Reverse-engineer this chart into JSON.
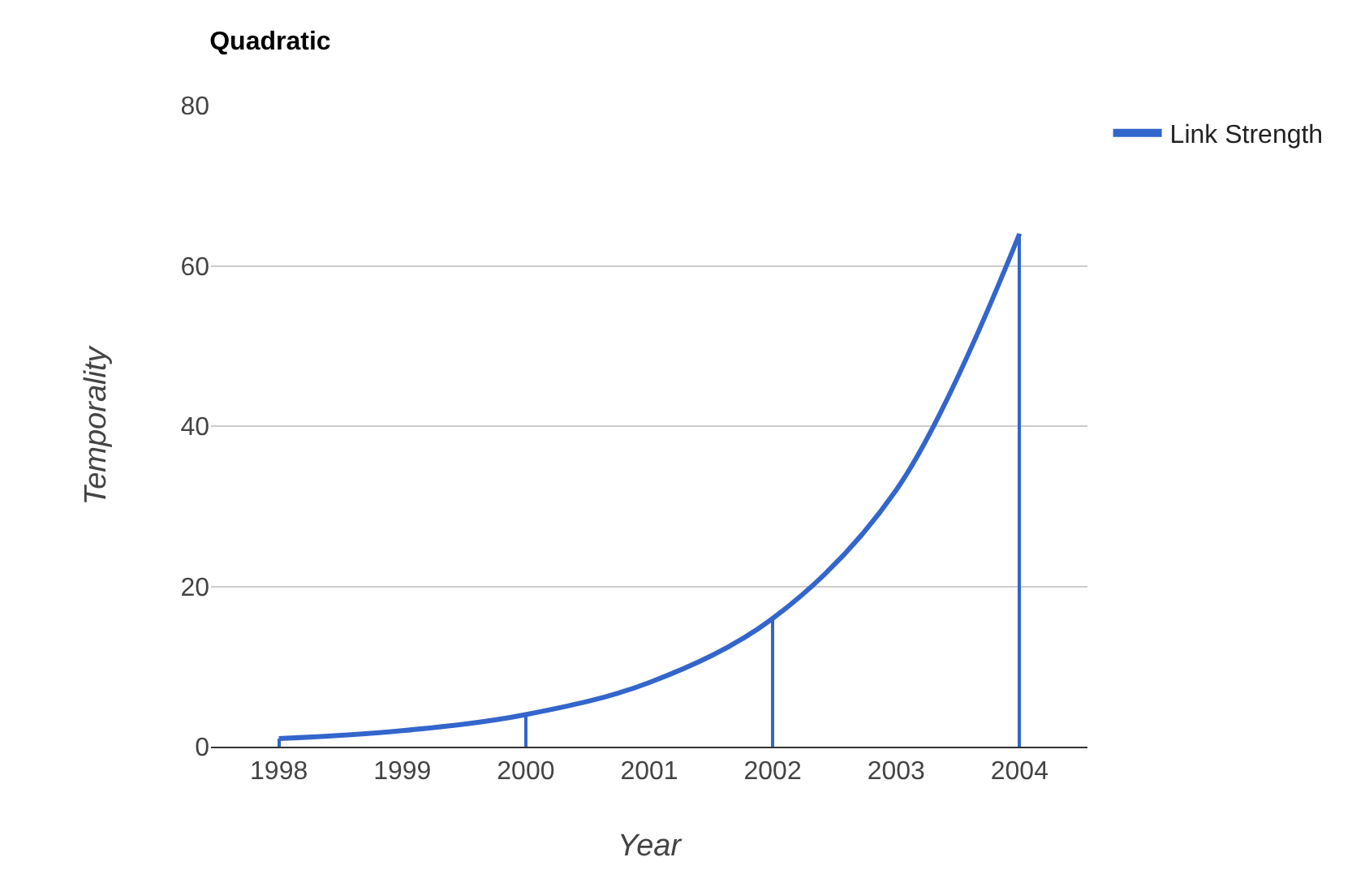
{
  "chart_data": {
    "type": "line",
    "title": "Quadratic",
    "xlabel": "Year",
    "ylabel": "Temporality",
    "categories": [
      "1998",
      "1999",
      "2000",
      "2001",
      "2002",
      "2003",
      "2004"
    ],
    "series": [
      {
        "name": "Link Strength",
        "color": "#3366cc",
        "values": [
          1,
          2,
          4,
          8,
          16,
          32,
          64
        ]
      },
      {
        "type": "bar",
        "color": "#3366cc",
        "values": [
          1,
          null,
          4,
          null,
          16,
          null,
          64
        ]
      }
    ],
    "ylim": [
      0,
      80
    ],
    "yticks": [
      0,
      20,
      40,
      60,
      80
    ],
    "grid": "y",
    "legend": "top right"
  }
}
